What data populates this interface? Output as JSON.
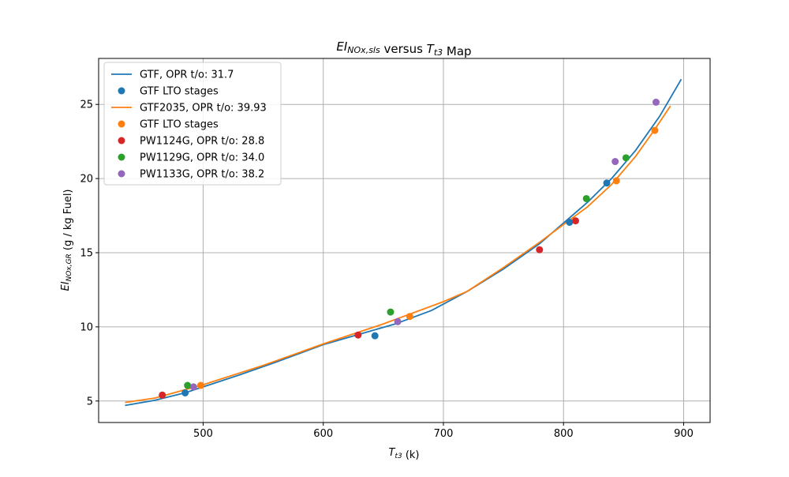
{
  "chart_data": {
    "type": "line",
    "title_parts": [
      {
        "text": "EI",
        "style": "italic"
      },
      {
        "text": "NOx,sls",
        "style": "italic-sub"
      },
      {
        "text": " versus ",
        "style": "normal"
      },
      {
        "text": "T",
        "style": "italic"
      },
      {
        "text": "t3",
        "style": "italic-sub"
      },
      {
        "text": " Map",
        "style": "normal"
      }
    ],
    "xlabel_parts": [
      {
        "text": "T",
        "style": "italic"
      },
      {
        "text": "t3",
        "style": "italic-sub"
      },
      {
        "text": " (k)",
        "style": "normal"
      }
    ],
    "ylabel_parts": [
      {
        "text": "EI",
        "style": "italic"
      },
      {
        "text": "NOx,GR",
        "style": "italic-sub"
      },
      {
        "text": " (g / kg Fuel)",
        "style": "normal"
      }
    ],
    "xlim": [
      413,
      922
    ],
    "ylim": [
      3.55,
      28.1
    ],
    "xticks": [
      500,
      600,
      700,
      800,
      900
    ],
    "yticks": [
      5,
      10,
      15,
      20,
      25
    ],
    "grid": true,
    "legend_position": "top-left",
    "series": [
      {
        "name": "GTF, OPR t/o: 31.7",
        "kind": "line",
        "color": "#1f77b4",
        "x": [
          435,
          460,
          485,
          500,
          530,
          560,
          590,
          600,
          630,
          660,
          690,
          720,
          750,
          780,
          800,
          820,
          840,
          860,
          880,
          898
        ],
        "y": [
          4.7,
          5.05,
          5.55,
          5.95,
          6.75,
          7.6,
          8.5,
          8.8,
          9.5,
          10.2,
          11.1,
          12.4,
          13.9,
          15.6,
          17.0,
          18.4,
          20.0,
          21.9,
          24.2,
          26.7
        ]
      },
      {
        "name": "GTF LTO stages",
        "kind": "scatter",
        "color": "#1f77b4",
        "x": [
          485,
          643,
          805,
          836
        ],
        "y": [
          5.55,
          9.4,
          17.05,
          19.7
        ]
      },
      {
        "name": "GTF2035, OPR t/o: 39.93",
        "kind": "line",
        "color": "#ff7f0e",
        "x": [
          435,
          460,
          500,
          550,
          600,
          650,
          700,
          720,
          750,
          780,
          800,
          820,
          840,
          860,
          875,
          889
        ],
        "y": [
          4.9,
          5.2,
          6.1,
          7.4,
          8.85,
          10.2,
          11.7,
          12.4,
          14.0,
          15.7,
          16.9,
          18.1,
          19.6,
          21.5,
          23.2,
          24.9
        ]
      },
      {
        "name": "GTF LTO stages",
        "kind": "scatter",
        "color": "#ff7f0e",
        "x": [
          498,
          672,
          844,
          876
        ],
        "y": [
          6.05,
          10.7,
          19.85,
          23.25
        ]
      },
      {
        "name": "PW1124G, OPR t/o: 28.8",
        "kind": "scatter",
        "color": "#d62728",
        "x": [
          466,
          629,
          780,
          810
        ],
        "y": [
          5.4,
          9.45,
          15.2,
          17.15
        ]
      },
      {
        "name": "PW1129G, OPR t/o: 34.0",
        "kind": "scatter",
        "color": "#2ca02c",
        "x": [
          487,
          656,
          819,
          852
        ],
        "y": [
          6.05,
          11.0,
          18.65,
          21.4
        ]
      },
      {
        "name": "PW1133G, OPR t/o: 38.2",
        "kind": "scatter",
        "color": "#9467bd",
        "x": [
          492,
          662,
          843,
          877
        ],
        "y": [
          5.95,
          10.35,
          21.15,
          25.15
        ]
      }
    ]
  }
}
